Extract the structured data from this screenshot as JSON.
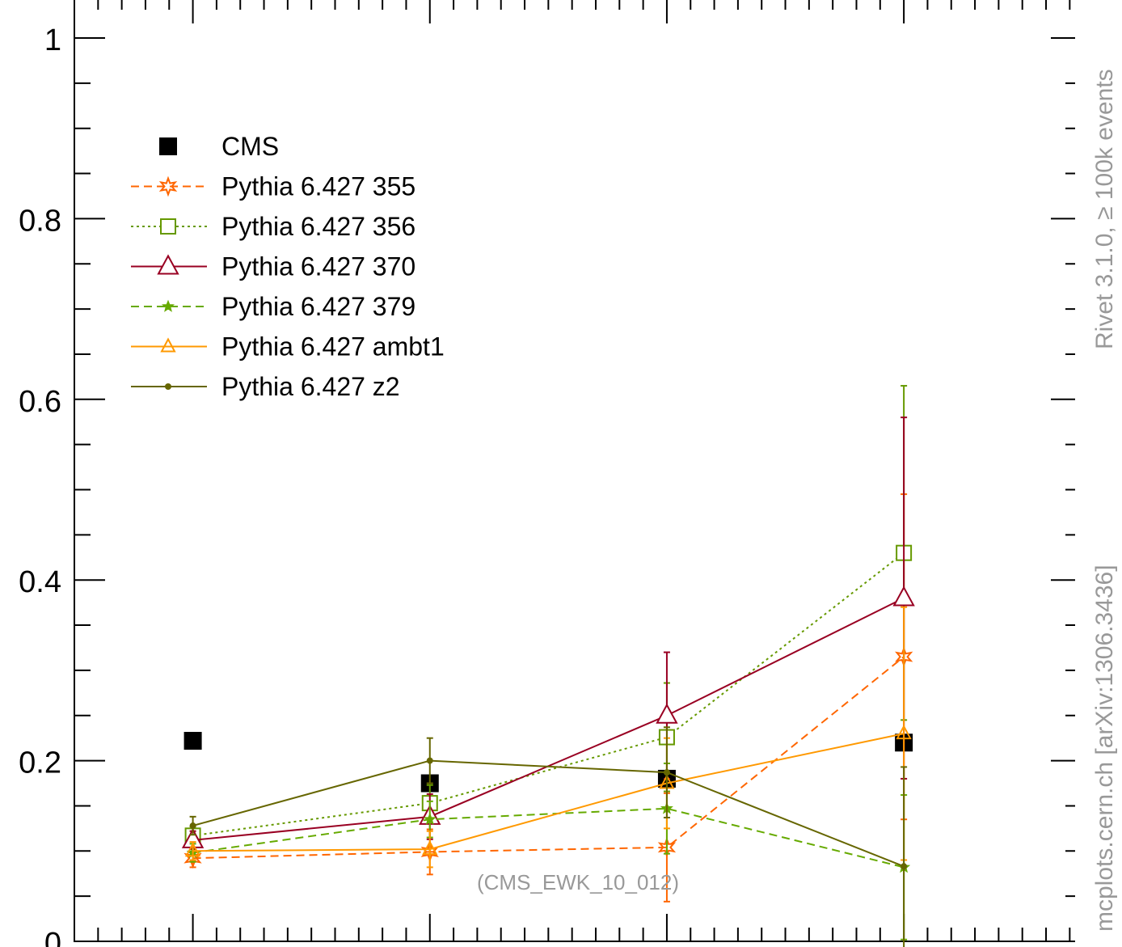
{
  "side_labels": {
    "rivet": "Rivet 3.1.0, ≥ 100k events",
    "mcplots": "mcplots.cern.ch [arXiv:1306.3436]"
  },
  "chart_data": {
    "type": "scatter",
    "title": "",
    "xlabel": "",
    "ylabel": "",
    "xlim": [
      0.5,
      4.75
    ],
    "ylim": [
      0,
      1.0
    ],
    "x": [
      1,
      2,
      3,
      4
    ],
    "y_ticks": [
      {
        "value": 0,
        "label": "0"
      },
      {
        "value": 0.2,
        "label": "0.2"
      },
      {
        "value": 0.4,
        "label": "0.4"
      },
      {
        "value": 0.6,
        "label": "0.6"
      },
      {
        "value": 0.8,
        "label": "0.8"
      },
      {
        "value": 1.0,
        "label": "1"
      }
    ],
    "annotation": "(CMS_EWK_10_012)",
    "legend_position": "top-left",
    "series": [
      {
        "name": "CMS",
        "color": "#000000",
        "marker": "filled-square",
        "line": "none",
        "values": [
          0.222,
          0.175,
          0.18,
          0.22
        ],
        "err": [
          0,
          0,
          0,
          0
        ]
      },
      {
        "name": "Pythia 6.427 355",
        "color": "#ff6600",
        "marker": "star",
        "line": "dashed",
        "values": [
          0.092,
          0.099,
          0.104,
          0.315
        ],
        "err": [
          0.01,
          0.025,
          0.06,
          0.18
        ]
      },
      {
        "name": "Pythia 6.427 356",
        "color": "#669900",
        "marker": "open-square",
        "line": "dotted",
        "values": [
          0.117,
          0.153,
          0.226,
          0.43
        ],
        "err": [
          0.01,
          0.02,
          0.06,
          0.185
        ]
      },
      {
        "name": "Pythia 6.427 370",
        "color": "#990022",
        "marker": "open-triangle-large",
        "line": "solid",
        "values": [
          0.112,
          0.138,
          0.25,
          0.38
        ],
        "err": [
          0.01,
          0.025,
          0.07,
          0.2
        ]
      },
      {
        "name": "Pythia 6.427 379",
        "color": "#66aa00",
        "marker": "star-small",
        "line": "dashed",
        "values": [
          0.098,
          0.135,
          0.147,
          0.082
        ],
        "err": [
          0.01,
          0.02,
          0.05,
          0.08
        ]
      },
      {
        "name": "Pythia 6.427 ambt1",
        "color": "#ff9900",
        "marker": "open-triangle",
        "line": "solid",
        "values": [
          0.1,
          0.102,
          0.175,
          0.23
        ],
        "err": [
          0.01,
          0.02,
          0.05,
          0.14
        ]
      },
      {
        "name": "Pythia 6.427 z2",
        "color": "#666600",
        "marker": "dot",
        "line": "solid",
        "values": [
          0.128,
          0.2,
          0.187,
          0.083
        ],
        "err": [
          0.01,
          0.025,
          0.05,
          0.11
        ]
      }
    ]
  }
}
